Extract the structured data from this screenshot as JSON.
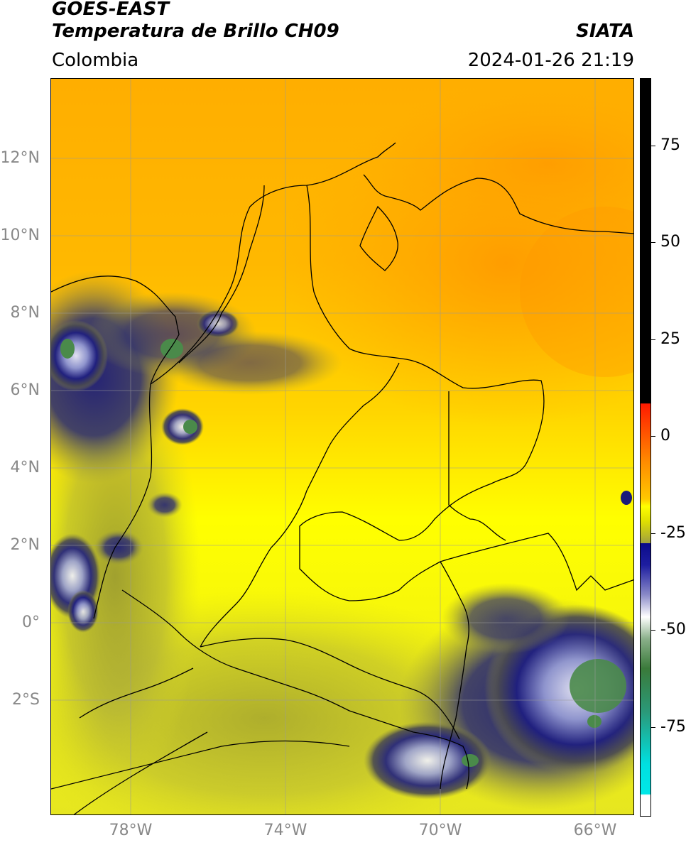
{
  "header": {
    "satellite": "GOES-EAST",
    "product": "Temperatura de Brillo CH09",
    "brand": "SIATA",
    "region": "Colombia",
    "datetime": "2024-01-26 21:19"
  },
  "map": {
    "lat_labels": [
      "12°N",
      "10°N",
      "8°N",
      "6°N",
      "4°N",
      "2°N",
      "0°",
      "2°S"
    ],
    "lon_labels": [
      "78°W",
      "74°W",
      "70°W",
      "66°W"
    ],
    "colors": {
      "warm_orange": "#ffa500",
      "yellow": "#ffff00",
      "olive": "#c8c832",
      "dark_olive": "#5a5a3c",
      "navy": "#1a1a7a",
      "white_cloud": "#f0f0ff",
      "green_top": "#4a8a4a"
    }
  },
  "colorbar": {
    "ticks": [
      "75",
      "50",
      "25",
      "0",
      "-25",
      "-50",
      "-75"
    ],
    "tick_values": [
      75,
      50,
      25,
      0,
      -25,
      -50,
      -75
    ],
    "range": [
      -95,
      90
    ]
  }
}
